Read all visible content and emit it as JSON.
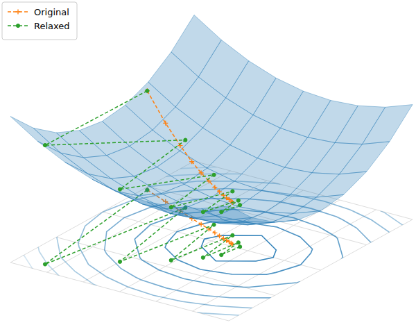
{
  "chart_data": {
    "type": "surface",
    "xlim": [
      -3,
      3
    ],
    "ylim": [
      -2,
      2
    ],
    "zlim": [
      -3,
      8
    ],
    "xticks": [
      -3,
      -2,
      -1,
      0,
      1,
      2,
      3
    ],
    "yticks": [
      -2,
      -1,
      0,
      1,
      2
    ],
    "grid": true,
    "tick_labels": false,
    "legend": "upper left",
    "surface": {
      "color": "#1f77b4",
      "x": [
        -3,
        -2.25,
        -1.5,
        -0.75,
        0,
        0.75,
        1.5,
        2.25,
        3
      ],
      "y": [
        -2,
        -1.5,
        -1,
        -0.5,
        0,
        0.5,
        1,
        1.5,
        2
      ],
      "z": [
        [
          7.52,
          6.25,
          5.27,
          4.56,
          4.14,
          4,
          4.14,
          4.56,
          5.27
        ],
        [
          5.77,
          4.5,
          3.52,
          2.81,
          2.39,
          2.25,
          2.39,
          2.81,
          3.52
        ],
        [
          4.52,
          3.25,
          2.27,
          1.56,
          1.14,
          1,
          1.14,
          1.56,
          2.27
        ],
        [
          3.77,
          2.5,
          1.52,
          0.81,
          0.39,
          0.25,
          0.39,
          0.81,
          1.52
        ],
        [
          3.52,
          2.25,
          1.27,
          0.56,
          0.14,
          0,
          0.14,
          0.56,
          1.27
        ],
        [
          3.77,
          2.5,
          1.52,
          0.81,
          0.39,
          0.25,
          0.39,
          0.81,
          1.52
        ],
        [
          4.52,
          3.25,
          2.27,
          1.56,
          1.14,
          1,
          1.14,
          1.56,
          2.27
        ],
        [
          5.77,
          4.5,
          3.52,
          2.81,
          2.39,
          2.25,
          2.39,
          2.81,
          3.52
        ],
        [
          7.52,
          6.25,
          5.27,
          4.56,
          4.14,
          4,
          4.14,
          4.56,
          5.27
        ]
      ]
    },
    "contour_levels": [
      0.25,
      0.75,
      1.5,
      2.5,
      3.5,
      4.5,
      5.5,
      6.5
    ],
    "series": [
      {
        "name": "Original",
        "color": "#ff7f0e",
        "marker": "+",
        "line_style": "dashed",
        "x": [
          -2.9,
          -2.17,
          -1.59,
          -1.12,
          -0.75,
          -0.45,
          -0.21,
          -0.02,
          0.14,
          0.26,
          0.36,
          0.44,
          0.5
        ],
        "y": [
          0.9,
          0.72,
          0.58,
          0.46,
          0.37,
          0.3,
          0.24,
          0.19,
          0.15,
          0.12,
          0.1,
          0.08,
          0.06
        ],
        "z": [
          4.14,
          2.65,
          1.7,
          1.09,
          0.7,
          0.45,
          0.28,
          0.18,
          0.12,
          0.07,
          0.05,
          0.03,
          0.02
        ]
      },
      {
        "name": "Relaxed",
        "color": "#2ca02c",
        "marker": "o",
        "line_style": "dashed",
        "x": [
          -2.9,
          -2.3,
          -1.6,
          -1.0,
          -0.5,
          -0.1,
          0.2,
          0.4,
          0.55,
          0.65,
          0.72
        ],
        "y": [
          0.9,
          -1.8,
          0.7,
          -1.2,
          0.45,
          -0.8,
          0.3,
          -0.5,
          0.15,
          -0.3,
          0.05
        ],
        "z": [
          4.14,
          5.57,
          1.87,
          2.21,
          0.59,
          0.82,
          0.17,
          0.28,
          0.03,
          0.09,
          0
        ]
      }
    ]
  }
}
